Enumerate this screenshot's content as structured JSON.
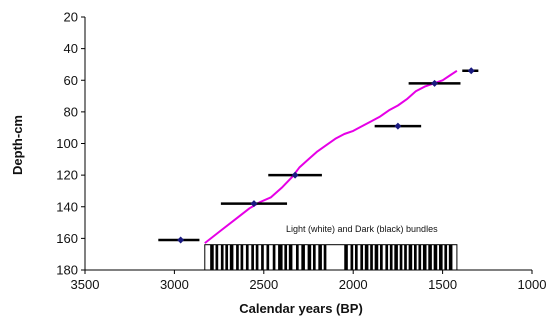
{
  "chart_data": {
    "type": "scatter",
    "xlabel": "Calendar years (BP)",
    "ylabel": "Depth-cm",
    "xlim": [
      3500,
      1000
    ],
    "ylim": [
      20,
      180
    ],
    "x_reversed": true,
    "y_reversed": true,
    "grid": false,
    "x_ticks": [
      "3500",
      "3000",
      "2500",
      "2000",
      "1500",
      "1000"
    ],
    "y_ticks": [
      "20",
      "40",
      "60",
      "80",
      "100",
      "120",
      "140",
      "160",
      "180"
    ],
    "dated_points": [
      {
        "x": 2965,
        "y": 161,
        "xerr_low": 3090,
        "xerr_high": 2860
      },
      {
        "x": 2555,
        "y": 138,
        "xerr_low": 2740,
        "xerr_high": 2370
      },
      {
        "x": 2325,
        "y": 120,
        "xerr_low": 2475,
        "xerr_high": 2175
      },
      {
        "x": 1750,
        "y": 89,
        "xerr_low": 1880,
        "xerr_high": 1620
      },
      {
        "x": 1545,
        "y": 62,
        "xerr_low": 1690,
        "xerr_high": 1400
      },
      {
        "x": 1340,
        "y": 54,
        "xerr_low": 1390,
        "xerr_high": 1300
      }
    ],
    "age_model_curve": {
      "color": "#e600e6",
      "points": [
        [
          2830,
          163
        ],
        [
          2740,
          155
        ],
        [
          2660,
          148
        ],
        [
          2580,
          141
        ],
        [
          2520,
          137
        ],
        [
          2460,
          134
        ],
        [
          2400,
          128
        ],
        [
          2340,
          121
        ],
        [
          2300,
          115
        ],
        [
          2250,
          110
        ],
        [
          2200,
          105
        ],
        [
          2150,
          101
        ],
        [
          2100,
          97
        ],
        [
          2050,
          94
        ],
        [
          2000,
          92
        ],
        [
          1950,
          89
        ],
        [
          1900,
          86
        ],
        [
          1850,
          83
        ],
        [
          1800,
          79
        ],
        [
          1750,
          76
        ],
        [
          1700,
          72
        ],
        [
          1650,
          67
        ],
        [
          1600,
          64
        ],
        [
          1550,
          62
        ],
        [
          1500,
          60
        ],
        [
          1460,
          57
        ],
        [
          1420,
          54
        ]
      ]
    },
    "bundle_bar": {
      "x_start": 2830,
      "x_end": 1420,
      "label": "Light (white) and Dark (black) bundles",
      "dark_bands": [
        [
          2800,
          2780
        ],
        [
          2770,
          2755
        ],
        [
          2740,
          2725
        ],
        [
          2715,
          2700
        ],
        [
          2690,
          2670
        ],
        [
          2655,
          2640
        ],
        [
          2630,
          2615
        ],
        [
          2600,
          2585
        ],
        [
          2570,
          2555
        ],
        [
          2545,
          2530
        ],
        [
          2515,
          2500
        ],
        [
          2485,
          2470
        ],
        [
          2450,
          2435
        ],
        [
          2420,
          2395
        ],
        [
          2385,
          2370
        ],
        [
          2360,
          2340
        ],
        [
          2320,
          2305
        ],
        [
          2290,
          2270
        ],
        [
          2255,
          2235
        ],
        [
          2225,
          2210
        ],
        [
          2195,
          2175
        ],
        [
          2165,
          2150
        ],
        [
          2050,
          2030
        ],
        [
          2015,
          2000
        ],
        [
          1990,
          1975
        ],
        [
          1960,
          1945
        ],
        [
          1935,
          1915
        ],
        [
          1905,
          1890
        ],
        [
          1880,
          1860
        ],
        [
          1850,
          1835
        ],
        [
          1820,
          1805
        ],
        [
          1795,
          1780
        ],
        [
          1770,
          1750
        ],
        [
          1740,
          1725
        ],
        [
          1715,
          1700
        ],
        [
          1690,
          1670
        ],
        [
          1660,
          1645
        ],
        [
          1635,
          1620
        ],
        [
          1610,
          1590
        ],
        [
          1580,
          1560
        ],
        [
          1550,
          1530
        ],
        [
          1520,
          1500
        ],
        [
          1490,
          1475
        ],
        [
          1465,
          1445
        ]
      ]
    },
    "colors": {
      "marker": "#1a1a80",
      "error_bar": "#000000",
      "axis": "#000000"
    }
  }
}
